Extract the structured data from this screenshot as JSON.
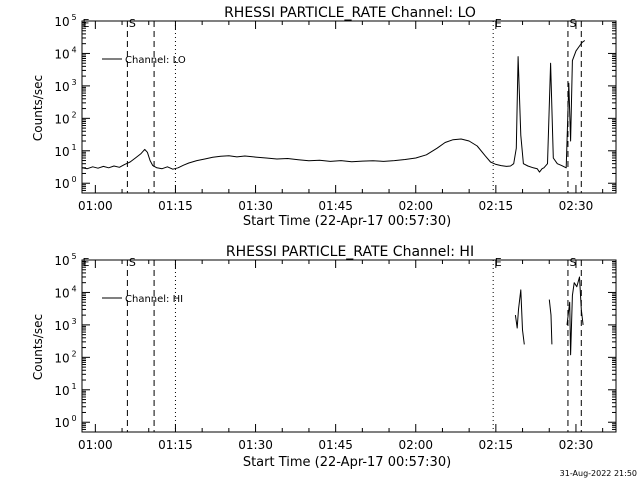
{
  "footer": {
    "timestamp": "31-Aug-2022 21:50"
  },
  "chart_data": [
    {
      "type": "line",
      "title": "RHESSI PARTICLE_RATE Channel: LO",
      "xlabel": "Start Time (22-Apr-17 00:57:30)",
      "ylabel": "Counts/sec",
      "xlim": [
        "00:57:30",
        "02:37:30"
      ],
      "ylim": [
        0.5,
        100000
      ],
      "y_scale": "log",
      "grid": false,
      "x_ticks": [
        "01:00",
        "01:15",
        "01:30",
        "01:45",
        "02:00",
        "02:15",
        "02:30"
      ],
      "y_ticks": [
        {
          "value": 1,
          "base": "10",
          "exp": "0"
        },
        {
          "value": 10,
          "base": "10",
          "exp": "1"
        },
        {
          "value": 100,
          "base": "10",
          "exp": "2"
        },
        {
          "value": 1000,
          "base": "10",
          "exp": "3"
        },
        {
          "value": 10000,
          "base": "10",
          "exp": "4"
        },
        {
          "value": 100000,
          "base": "10",
          "exp": "5"
        }
      ],
      "legend": {
        "position": "top-left",
        "label": "Channel: LO"
      },
      "markers": [
        {
          "time": "00:57:30",
          "label": "E",
          "style": "none"
        },
        {
          "time": "01:06:00",
          "label": "S",
          "style": "dashed"
        },
        {
          "time": "01:11:00",
          "label": "",
          "style": "dashed"
        },
        {
          "time": "01:15:00",
          "label": "",
          "style": "dotted"
        },
        {
          "time": "02:14:30",
          "label": "E",
          "style": "dotted"
        },
        {
          "time": "02:28:30",
          "label": "S",
          "style": "dashed"
        },
        {
          "time": "02:31:00",
          "label": "",
          "style": "dashed"
        }
      ],
      "series": [
        {
          "segments": [
            [
              [
                "00:57:30",
                3.0
              ],
              [
                "00:58:30",
                2.8
              ],
              [
                "00:59:30",
                3.2
              ],
              [
                "01:00:30",
                2.9
              ],
              [
                "01:01:30",
                3.3
              ],
              [
                "01:02:30",
                3.0
              ],
              [
                "01:03:30",
                3.4
              ],
              [
                "01:04:30",
                3.1
              ],
              [
                "01:05:30",
                3.8
              ],
              [
                "01:06:30",
                4.5
              ],
              [
                "01:07:30",
                6.0
              ],
              [
                "01:08:30",
                8.0
              ],
              [
                "01:09:15",
                11.0
              ],
              [
                "01:09:45",
                9.0
              ],
              [
                "01:10:15",
                5.0
              ],
              [
                "01:10:45",
                3.5
              ],
              [
                "01:11:30",
                3.0
              ],
              [
                "01:12:30",
                2.8
              ],
              [
                "01:13:30",
                3.2
              ],
              [
                "01:14:30",
                2.7
              ],
              [
                "01:15:30",
                3.0
              ],
              [
                "01:16:30",
                3.6
              ],
              [
                "01:17:30",
                4.2
              ],
              [
                "01:19:00",
                5.0
              ],
              [
                "01:20:30",
                5.6
              ],
              [
                "01:22:00",
                6.3
              ],
              [
                "01:23:30",
                6.8
              ],
              [
                "01:25:00",
                7.0
              ],
              [
                "01:26:30",
                6.5
              ],
              [
                "01:28:00",
                6.9
              ],
              [
                "01:30:00",
                6.4
              ],
              [
                "01:32:00",
                6.0
              ],
              [
                "01:34:00",
                5.6
              ],
              [
                "01:36:00",
                5.8
              ],
              [
                "01:38:00",
                5.3
              ],
              [
                "01:40:00",
                4.9
              ],
              [
                "01:42:00",
                5.1
              ],
              [
                "01:44:00",
                4.7
              ],
              [
                "01:46:00",
                5.0
              ],
              [
                "01:48:00",
                4.6
              ],
              [
                "01:50:00",
                4.8
              ],
              [
                "01:52:00",
                4.9
              ],
              [
                "01:54:00",
                4.7
              ],
              [
                "01:56:00",
                5.0
              ],
              [
                "01:58:00",
                5.4
              ],
              [
                "02:00:00",
                6.0
              ],
              [
                "02:02:00",
                7.5
              ],
              [
                "02:04:00",
                12.0
              ],
              [
                "02:05:30",
                18.0
              ],
              [
                "02:07:00",
                22.0
              ],
              [
                "02:08:30",
                23.0
              ],
              [
                "02:10:00",
                20.0
              ],
              [
                "02:11:30",
                14.0
              ],
              [
                "02:13:00",
                7.0
              ],
              [
                "02:14:00",
                4.5
              ],
              [
                "02:15:00",
                3.8
              ],
              [
                "02:16:00",
                3.5
              ],
              [
                "02:17:00",
                3.3
              ],
              [
                "02:17:45",
                3.4
              ],
              [
                "02:18:20",
                4.0
              ],
              [
                "02:18:50",
                12.0
              ],
              [
                "02:19:10",
                8000.0
              ],
              [
                "02:19:40",
                30.0
              ],
              [
                "02:20:10",
                4.0
              ],
              [
                "02:21:00",
                3.4
              ],
              [
                "02:22:00",
                3.0
              ],
              [
                "02:22:45",
                2.8
              ],
              [
                "02:23:10",
                2.2
              ],
              [
                "02:23:40",
                2.8
              ],
              [
                "02:24:00",
                3.0
              ],
              [
                "02:24:40",
                4.0
              ],
              [
                "02:25:15",
                5000.0
              ],
              [
                "02:25:45",
                6.0
              ],
              [
                "02:26:30",
                4.0
              ],
              [
                "02:27:20",
                3.5
              ],
              [
                "02:28:10",
                3.0
              ],
              [
                "02:28:40",
                1200.0
              ],
              [
                "02:29:00",
                20.0
              ],
              [
                "02:29:20",
                6000.0
              ],
              [
                "02:30:00",
                12000.0
              ],
              [
                "02:30:40",
                17000.0
              ],
              [
                "02:31:10",
                22000.0
              ],
              [
                "02:31:40",
                25000.0
              ]
            ]
          ]
        }
      ]
    },
    {
      "type": "line",
      "title": "RHESSI PARTICLE_RATE Channel: HI",
      "xlabel": "Start Time (22-Apr-17 00:57:30)",
      "ylabel": "Counts/sec",
      "xlim": [
        "00:57:30",
        "02:37:30"
      ],
      "ylim": [
        0.5,
        100000
      ],
      "y_scale": "log",
      "grid": false,
      "x_ticks": [
        "01:00",
        "01:15",
        "01:30",
        "01:45",
        "02:00",
        "02:15",
        "02:30"
      ],
      "y_ticks": [
        {
          "value": 1,
          "base": "10",
          "exp": "0"
        },
        {
          "value": 10,
          "base": "10",
          "exp": "1"
        },
        {
          "value": 100,
          "base": "10",
          "exp": "2"
        },
        {
          "value": 1000,
          "base": "10",
          "exp": "3"
        },
        {
          "value": 10000,
          "base": "10",
          "exp": "4"
        },
        {
          "value": 100000,
          "base": "10",
          "exp": "5"
        }
      ],
      "legend": {
        "position": "top-left",
        "label": "Channel: HI"
      },
      "markers": [
        {
          "time": "00:57:30",
          "label": "E",
          "style": "none"
        },
        {
          "time": "01:06:00",
          "label": "S",
          "style": "dashed"
        },
        {
          "time": "01:11:00",
          "label": "",
          "style": "dashed"
        },
        {
          "time": "01:15:00",
          "label": "",
          "style": "dotted"
        },
        {
          "time": "02:14:30",
          "label": "E",
          "style": "dotted"
        },
        {
          "time": "02:28:30",
          "label": "S",
          "style": "dashed"
        },
        {
          "time": "02:31:00",
          "label": "",
          "style": "dashed"
        }
      ],
      "series": [
        {
          "segments": [
            [
              [
                "02:18:40",
                2000.0
              ],
              [
                "02:19:00",
                800.0
              ],
              [
                "02:19:15",
                3000.0
              ],
              [
                "02:19:40",
                12000.0
              ],
              [
                "02:20:00",
                700.0
              ],
              [
                "02:20:20",
                250.0
              ]
            ],
            [
              [
                "02:25:00",
                6000.0
              ],
              [
                "02:25:20",
                2000.0
              ],
              [
                "02:25:30",
                250.0
              ]
            ],
            [
              [
                "02:28:20",
                1000.0
              ],
              [
                "02:28:50",
                5000.0
              ],
              [
                "02:29:00",
                120.0
              ],
              [
                "02:29:20",
                8000.0
              ],
              [
                "02:29:40",
                20000.0
              ],
              [
                "02:30:10",
                15000.0
              ],
              [
                "02:30:40",
                30000.0
              ],
              [
                "02:31:00",
                3000.0
              ],
              [
                "02:31:20",
                1000.0
              ]
            ]
          ]
        }
      ]
    }
  ]
}
